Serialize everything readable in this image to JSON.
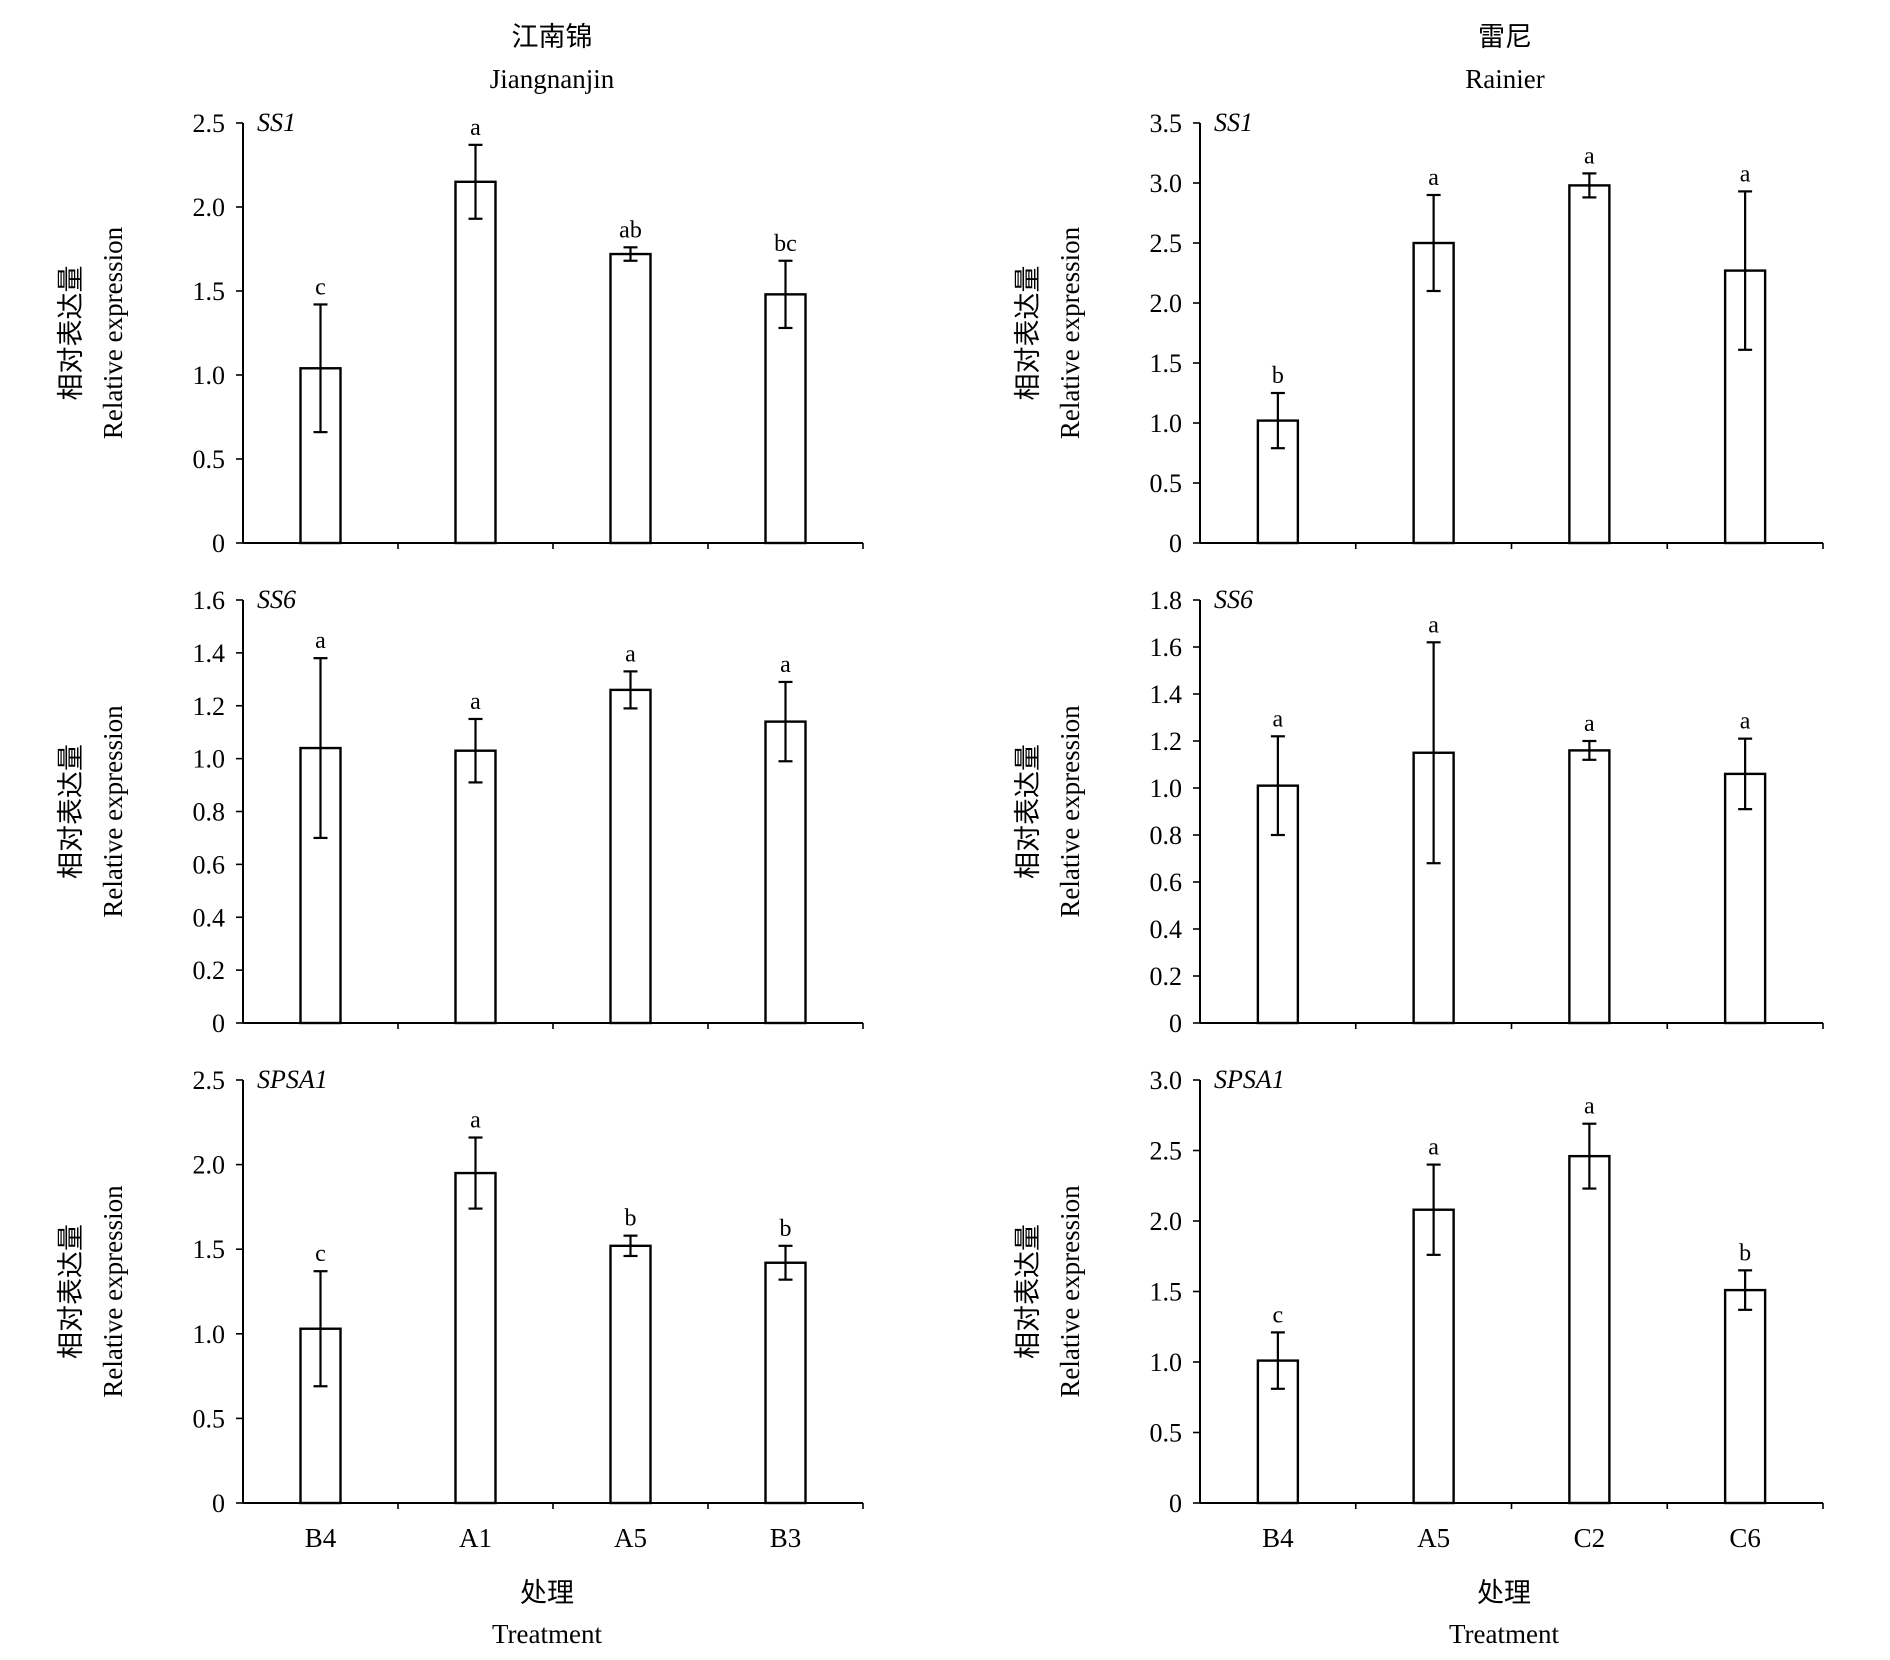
{
  "columns": [
    {
      "title_cn": "江南锦",
      "title_en": "Jiangnanjin"
    },
    {
      "title_cn": "雷尼",
      "title_en": "Rainier"
    }
  ],
  "ylabel_cn": "相对表达量",
  "ylabel_en": "Relative expression",
  "xlabel_cn": "处理",
  "xlabel_en": "Treatment",
  "chart_data": [
    {
      "type": "bar",
      "column": "江南锦 Jiangnanjin",
      "gene": "SS1",
      "categories": [
        "B4",
        "A1",
        "A5",
        "B3"
      ],
      "values": [
        1.04,
        2.15,
        1.72,
        1.48
      ],
      "errors": [
        0.38,
        0.22,
        0.04,
        0.2
      ],
      "significance": [
        "c",
        "a",
        "ab",
        "bc"
      ],
      "ylim": [
        0,
        2.5
      ],
      "yticks": [
        "0",
        "0.5",
        "1.0",
        "1.5",
        "2.0",
        "2.5"
      ],
      "ylabel": "相对表达量 Relative expression"
    },
    {
      "type": "bar",
      "column": "雷尼 Rainier",
      "gene": "SS1",
      "categories": [
        "B4",
        "A5",
        "C2",
        "C6"
      ],
      "values": [
        1.02,
        2.5,
        2.98,
        2.27
      ],
      "errors": [
        0.23,
        0.4,
        0.1,
        0.66
      ],
      "significance": [
        "b",
        "a",
        "a",
        "a"
      ],
      "ylim": [
        0,
        3.5
      ],
      "yticks": [
        "0",
        "0.5",
        "1.0",
        "1.5",
        "2.0",
        "2.5",
        "3.0",
        "3.5"
      ],
      "ylabel": "相对表达量 Relative expression"
    },
    {
      "type": "bar",
      "column": "江南锦 Jiangnanjin",
      "gene": "SS6",
      "categories": [
        "B4",
        "A1",
        "A5",
        "B3"
      ],
      "values": [
        1.04,
        1.03,
        1.26,
        1.14
      ],
      "errors": [
        0.34,
        0.12,
        0.07,
        0.15
      ],
      "significance": [
        "a",
        "a",
        "a",
        "a"
      ],
      "ylim": [
        0,
        1.6
      ],
      "yticks": [
        "0",
        "0.2",
        "0.4",
        "0.6",
        "0.8",
        "1.0",
        "1.2",
        "1.4",
        "1.6"
      ],
      "ylabel": "相对表达量 Relative expression"
    },
    {
      "type": "bar",
      "column": "雷尼 Rainier",
      "gene": "SS6",
      "categories": [
        "B4",
        "A5",
        "C2",
        "C6"
      ],
      "values": [
        1.01,
        1.15,
        1.16,
        1.06
      ],
      "errors": [
        0.21,
        0.47,
        0.04,
        0.15
      ],
      "significance": [
        "a",
        "a",
        "a",
        "a"
      ],
      "ylim": [
        0,
        1.8
      ],
      "yticks": [
        "0",
        "0.2",
        "0.4",
        "0.6",
        "0.8",
        "1.0",
        "1.2",
        "1.4",
        "1.6",
        "1.8"
      ],
      "ylabel": "相对表达量 Relative expression"
    },
    {
      "type": "bar",
      "column": "江南锦 Jiangnanjin",
      "gene": "SPSA1",
      "categories": [
        "B4",
        "A1",
        "A5",
        "B3"
      ],
      "values": [
        1.03,
        1.95,
        1.52,
        1.42
      ],
      "errors": [
        0.34,
        0.21,
        0.06,
        0.1
      ],
      "significance": [
        "c",
        "a",
        "b",
        "b"
      ],
      "ylim": [
        0,
        2.5
      ],
      "yticks": [
        "0",
        "0.5",
        "1.0",
        "1.5",
        "2.0",
        "2.5"
      ],
      "ylabel": "相对表达量 Relative expression",
      "xlabel": "处理 Treatment"
    },
    {
      "type": "bar",
      "column": "雷尼 Rainier",
      "gene": "SPSA1",
      "categories": [
        "B4",
        "A5",
        "C2",
        "C6"
      ],
      "values": [
        1.01,
        2.08,
        2.46,
        1.51
      ],
      "errors": [
        0.2,
        0.32,
        0.23,
        0.14
      ],
      "significance": [
        "c",
        "a",
        "a",
        "b"
      ],
      "ylim": [
        0,
        3.0
      ],
      "yticks": [
        "0",
        "0.5",
        "1.0",
        "1.5",
        "2.0",
        "2.5",
        "3.0"
      ],
      "ylabel": "相对表达量 Relative expression",
      "xlabel": "处理 Treatment"
    }
  ]
}
